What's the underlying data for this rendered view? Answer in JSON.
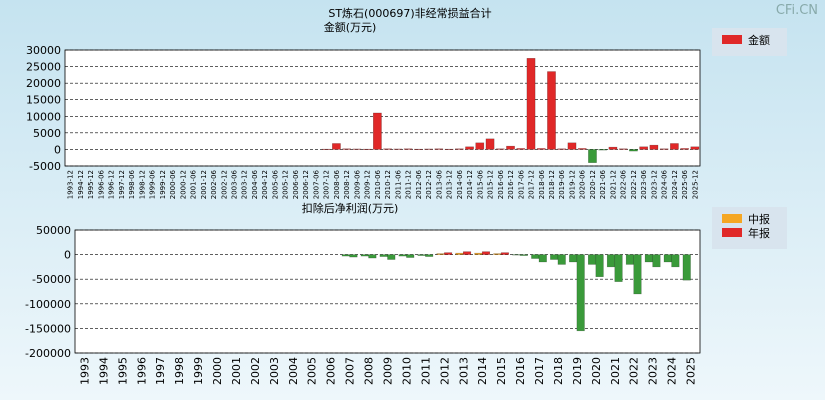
{
  "watermark": "CFi.CN",
  "chart_data": [
    {
      "type": "bar",
      "title": "ST炼石(000697)非经常损益合计",
      "y_label": "金额(万元)",
      "categories": [
        "1993-12",
        "1994-12",
        "1995-12",
        "1996-06",
        "1996-12",
        "1997-12",
        "1998-06",
        "1998-12",
        "1999-06",
        "1999-12",
        "2000-06",
        "2000-12",
        "2001-06",
        "2001-12",
        "2002-06",
        "2002-12",
        "2003-06",
        "2003-12",
        "2004-06",
        "2004-12",
        "2005-06",
        "2005-12",
        "2006-06",
        "2006-12",
        "2007-06",
        "2007-12",
        "2008-06",
        "2008-12",
        "2009-06",
        "2009-12",
        "2010-06",
        "2010-12",
        "2011-06",
        "2011-12",
        "2012-06",
        "2012-12",
        "2013-06",
        "2013-12",
        "2014-06",
        "2014-12",
        "2015-06",
        "2015-12",
        "2016-06",
        "2016-12",
        "2017-06",
        "2017-12",
        "2018-06",
        "2018-12",
        "2019-06",
        "2019-12",
        "2020-06",
        "2020-12",
        "2021-06",
        "2021-12",
        "2022-06",
        "2022-12",
        "2023-06",
        "2023-12",
        "2024-06",
        "2024-12",
        "2025-06",
        "2025-12"
      ],
      "series": [
        {
          "name": "金额",
          "color": "#e02828",
          "values": [
            null,
            null,
            null,
            null,
            null,
            null,
            null,
            null,
            null,
            null,
            null,
            null,
            null,
            null,
            null,
            null,
            null,
            null,
            null,
            null,
            null,
            null,
            null,
            null,
            null,
            100,
            1800,
            200,
            150,
            100,
            11000,
            200,
            150,
            200,
            100,
            150,
            200,
            100,
            200,
            800,
            2000,
            3200,
            200,
            1000,
            300,
            27500,
            300,
            23500,
            200,
            2000,
            300,
            -4000,
            -200,
            700,
            200,
            -500,
            800,
            1300,
            200,
            1800,
            300,
            800
          ]
        }
      ],
      "negative_color": "#3a9a3a",
      "ylim": [
        -5000,
        30000
      ],
      "yticks": [
        -5000,
        0,
        5000,
        10000,
        15000,
        20000,
        25000,
        30000
      ],
      "grid": true,
      "legend": "right"
    },
    {
      "type": "bar",
      "title": "扣除后净利润(万元)",
      "categories": [
        "1993",
        "1994",
        "1995",
        "1996",
        "1997",
        "1998",
        "1999",
        "2000",
        "2001",
        "2002",
        "2003",
        "2004",
        "2005",
        "2006",
        "2007",
        "2008",
        "2009",
        "2010",
        "2011",
        "2012",
        "2013",
        "2014",
        "2015",
        "2016",
        "2017",
        "2018",
        "2019",
        "2020",
        "2021",
        "2022",
        "2023",
        "2024",
        "2025"
      ],
      "series": [
        {
          "name": "中报",
          "color": "#f5a623",
          "values": [
            null,
            null,
            null,
            null,
            null,
            null,
            null,
            null,
            null,
            null,
            null,
            null,
            null,
            null,
            -3000,
            -3000,
            -4000,
            -3000,
            -2000,
            2000,
            3000,
            3000,
            2000,
            -1000,
            -8000,
            -10000,
            -15000,
            -20000,
            -25000,
            -20000,
            -15000,
            -15000,
            -52000
          ]
        },
        {
          "name": "年报",
          "color": "#e02828",
          "values": [
            null,
            null,
            null,
            null,
            null,
            null,
            null,
            null,
            null,
            null,
            null,
            null,
            null,
            null,
            -5000,
            -7000,
            -10000,
            -6000,
            -4000,
            4000,
            6000,
            6000,
            4000,
            -2000,
            -15000,
            -20000,
            -155000,
            -45000,
            -55000,
            -80000,
            -25000,
            -25000,
            null
          ]
        }
      ],
      "negative_color": "#3a9a3a",
      "ylim": [
        -200000,
        50000
      ],
      "yticks": [
        -200000,
        -150000,
        -100000,
        -50000,
        0,
        50000
      ],
      "grid": true,
      "legend": "right"
    }
  ]
}
